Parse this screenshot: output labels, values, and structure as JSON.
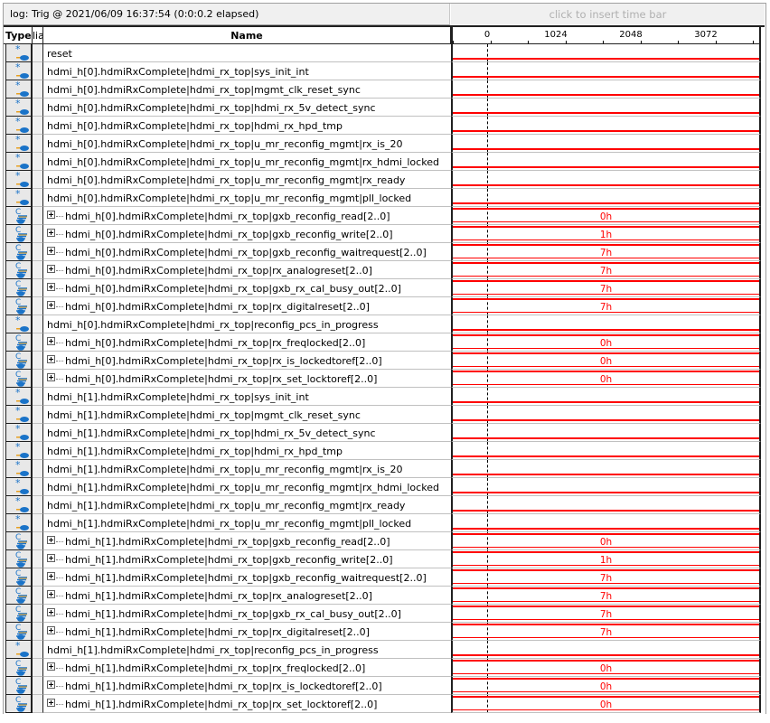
{
  "log_label": "log: Trig @ 2021/06/09 16:37:54 (0:0:0.2 elapsed)",
  "time_bar_hint": "click to insert time bar",
  "headers": {
    "type": "Type",
    "alias": "lia",
    "name": "Name"
  },
  "ruler_ticks": [
    "0",
    "1024",
    "2048",
    "3072"
  ],
  "colors": {
    "waveform": "#ff0000",
    "icon": "#1a73c8"
  },
  "rows": [
    {
      "name": "reset",
      "bus": false
    },
    {
      "name": "hdmi_h[0].hdmiRxComplete|hdmi_rx_top|sys_init_int",
      "bus": false
    },
    {
      "name": "hdmi_h[0].hdmiRxComplete|hdmi_rx_top|mgmt_clk_reset_sync",
      "bus": false
    },
    {
      "name": "hdmi_h[0].hdmiRxComplete|hdmi_rx_top|hdmi_rx_5v_detect_sync",
      "bus": false
    },
    {
      "name": "hdmi_h[0].hdmiRxComplete|hdmi_rx_top|hdmi_rx_hpd_tmp",
      "bus": false
    },
    {
      "name": "hdmi_h[0].hdmiRxComplete|hdmi_rx_top|u_mr_reconfig_mgmt|rx_is_20",
      "bus": false
    },
    {
      "name": "hdmi_h[0].hdmiRxComplete|hdmi_rx_top|u_mr_reconfig_mgmt|rx_hdmi_locked",
      "bus": false
    },
    {
      "name": "hdmi_h[0].hdmiRxComplete|hdmi_rx_top|u_mr_reconfig_mgmt|rx_ready",
      "bus": false
    },
    {
      "name": "hdmi_h[0].hdmiRxComplete|hdmi_rx_top|u_mr_reconfig_mgmt|pll_locked",
      "bus": false
    },
    {
      "name": "hdmi_h[0].hdmiRxComplete|hdmi_rx_top|gxb_reconfig_read[2..0]",
      "bus": true,
      "value": "0h"
    },
    {
      "name": "hdmi_h[0].hdmiRxComplete|hdmi_rx_top|gxb_reconfig_write[2..0]",
      "bus": true,
      "value": "1h"
    },
    {
      "name": "hdmi_h[0].hdmiRxComplete|hdmi_rx_top|gxb_reconfig_waitrequest[2..0]",
      "bus": true,
      "value": "7h"
    },
    {
      "name": "hdmi_h[0].hdmiRxComplete|hdmi_rx_top|rx_analogreset[2..0]",
      "bus": true,
      "value": "7h"
    },
    {
      "name": "hdmi_h[0].hdmiRxComplete|hdmi_rx_top|gxb_rx_cal_busy_out[2..0]",
      "bus": true,
      "value": "7h"
    },
    {
      "name": "hdmi_h[0].hdmiRxComplete|hdmi_rx_top|rx_digitalreset[2..0]",
      "bus": true,
      "value": "7h"
    },
    {
      "name": "hdmi_h[0].hdmiRxComplete|hdmi_rx_top|reconfig_pcs_in_progress",
      "bus": false
    },
    {
      "name": "hdmi_h[0].hdmiRxComplete|hdmi_rx_top|rx_freqlocked[2..0]",
      "bus": true,
      "value": "0h"
    },
    {
      "name": "hdmi_h[0].hdmiRxComplete|hdmi_rx_top|rx_is_lockedtoref[2..0]",
      "bus": true,
      "value": "0h"
    },
    {
      "name": "hdmi_h[0].hdmiRxComplete|hdmi_rx_top|rx_set_locktoref[2..0]",
      "bus": true,
      "value": "0h"
    },
    {
      "name": "hdmi_h[1].hdmiRxComplete|hdmi_rx_top|sys_init_int",
      "bus": false
    },
    {
      "name": "hdmi_h[1].hdmiRxComplete|hdmi_rx_top|mgmt_clk_reset_sync",
      "bus": false
    },
    {
      "name": "hdmi_h[1].hdmiRxComplete|hdmi_rx_top|hdmi_rx_5v_detect_sync",
      "bus": false
    },
    {
      "name": "hdmi_h[1].hdmiRxComplete|hdmi_rx_top|hdmi_rx_hpd_tmp",
      "bus": false
    },
    {
      "name": "hdmi_h[1].hdmiRxComplete|hdmi_rx_top|u_mr_reconfig_mgmt|rx_is_20",
      "bus": false
    },
    {
      "name": "hdmi_h[1].hdmiRxComplete|hdmi_rx_top|u_mr_reconfig_mgmt|rx_hdmi_locked",
      "bus": false
    },
    {
      "name": "hdmi_h[1].hdmiRxComplete|hdmi_rx_top|u_mr_reconfig_mgmt|rx_ready",
      "bus": false
    },
    {
      "name": "hdmi_h[1].hdmiRxComplete|hdmi_rx_top|u_mr_reconfig_mgmt|pll_locked",
      "bus": false
    },
    {
      "name": "hdmi_h[1].hdmiRxComplete|hdmi_rx_top|gxb_reconfig_read[2..0]",
      "bus": true,
      "value": "0h"
    },
    {
      "name": "hdmi_h[1].hdmiRxComplete|hdmi_rx_top|gxb_reconfig_write[2..0]",
      "bus": true,
      "value": "1h"
    },
    {
      "name": "hdmi_h[1].hdmiRxComplete|hdmi_rx_top|gxb_reconfig_waitrequest[2..0]",
      "bus": true,
      "value": "7h"
    },
    {
      "name": "hdmi_h[1].hdmiRxComplete|hdmi_rx_top|rx_analogreset[2..0]",
      "bus": true,
      "value": "7h"
    },
    {
      "name": "hdmi_h[1].hdmiRxComplete|hdmi_rx_top|gxb_rx_cal_busy_out[2..0]",
      "bus": true,
      "value": "7h"
    },
    {
      "name": "hdmi_h[1].hdmiRxComplete|hdmi_rx_top|rx_digitalreset[2..0]",
      "bus": true,
      "value": "7h"
    },
    {
      "name": "hdmi_h[1].hdmiRxComplete|hdmi_rx_top|reconfig_pcs_in_progress",
      "bus": false
    },
    {
      "name": "hdmi_h[1].hdmiRxComplete|hdmi_rx_top|rx_freqlocked[2..0]",
      "bus": true,
      "value": "0h"
    },
    {
      "name": "hdmi_h[1].hdmiRxComplete|hdmi_rx_top|rx_is_lockedtoref[2..0]",
      "bus": true,
      "value": "0h"
    },
    {
      "name": "hdmi_h[1].hdmiRxComplete|hdmi_rx_top|rx_set_locktoref[2..0]",
      "bus": true,
      "value": "0h"
    }
  ]
}
